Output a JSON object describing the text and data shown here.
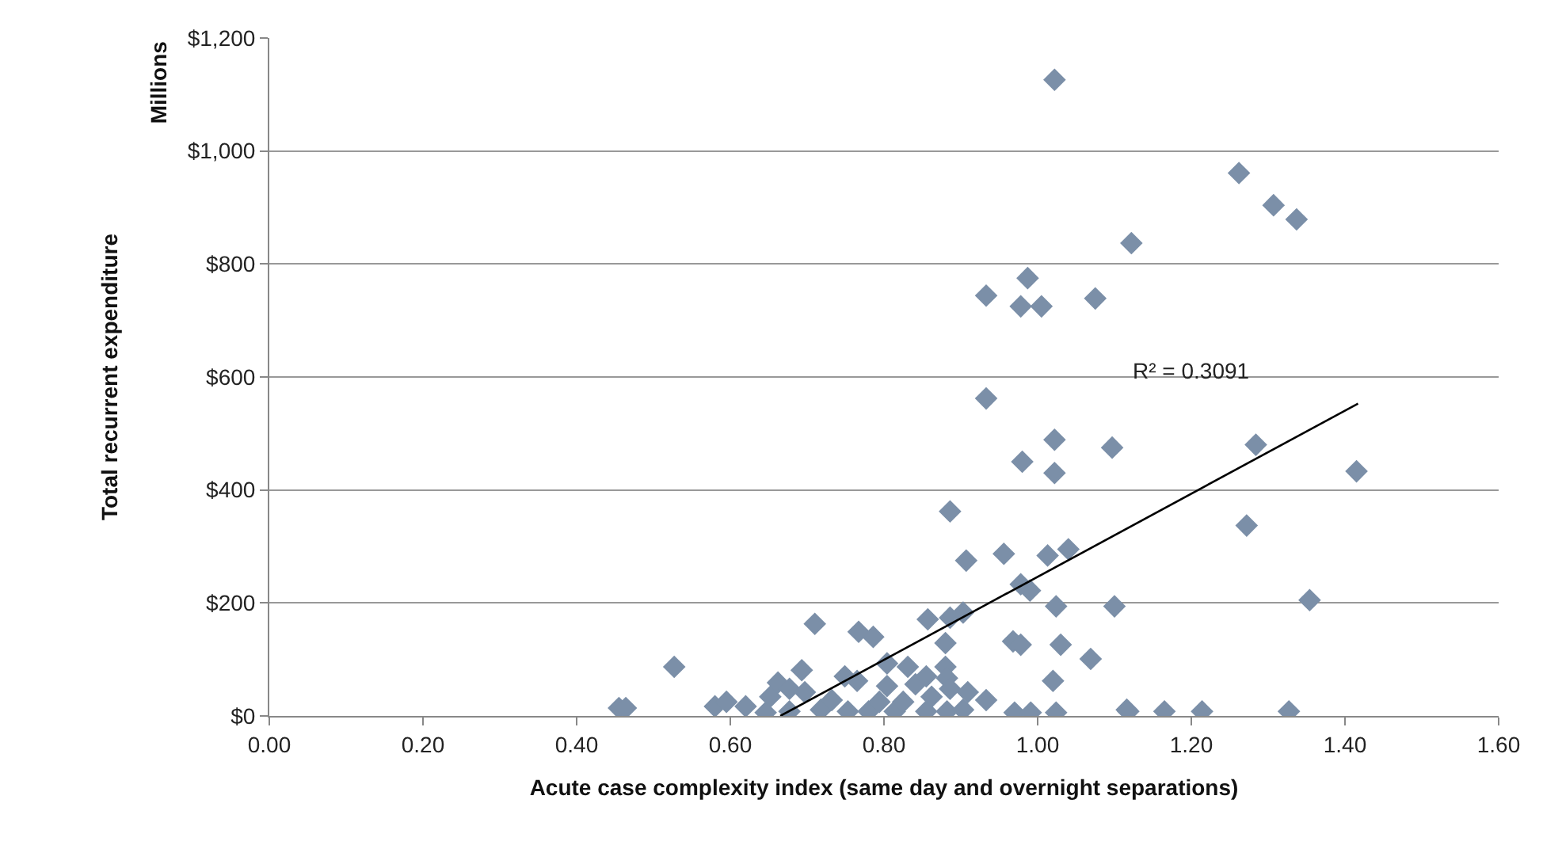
{
  "chart_data": {
    "type": "scatter",
    "xlabel": "Acute case complexity index (same day and overnight separations)",
    "ylabel": "Total recurrent expenditure",
    "annotations": [
      "Millions",
      "R² = 0.3091"
    ],
    "xlim": [
      0,
      1.6
    ],
    "ylim": [
      0,
      1200
    ],
    "xticks": [
      {
        "value": 0,
        "label": "0.00"
      },
      {
        "value": 0.2,
        "label": "0.20"
      },
      {
        "value": 0.4,
        "label": "0.40"
      },
      {
        "value": 0.6,
        "label": "0.60"
      },
      {
        "value": 0.8,
        "label": "0.80"
      },
      {
        "value": 1.0,
        "label": "1.00"
      },
      {
        "value": 1.2,
        "label": "1.20"
      },
      {
        "value": 1.4,
        "label": "1.40"
      },
      {
        "value": 1.6,
        "label": "1.60"
      }
    ],
    "yticks": [
      {
        "value": 0,
        "label": "$0"
      },
      {
        "value": 200,
        "label": "$200"
      },
      {
        "value": 400,
        "label": "$400"
      },
      {
        "value": 600,
        "label": "$600"
      },
      {
        "value": 800,
        "label": "$800"
      },
      {
        "value": 1000,
        "label": "$1,000"
      },
      {
        "value": 1200,
        "label": "$1,200"
      }
    ],
    "grid": "y",
    "marker": "diamond",
    "series": [
      {
        "color": "#7b8fa8",
        "x": [
          0.455,
          0.464,
          0.527,
          0.58,
          0.595,
          0.62,
          0.646,
          0.652,
          0.662,
          0.677,
          0.677,
          0.693,
          0.697,
          0.71,
          0.718,
          0.732,
          0.749,
          0.753,
          0.765,
          0.767,
          0.78,
          0.786,
          0.794,
          0.804,
          0.804,
          0.814,
          0.825,
          0.831,
          0.841,
          0.855,
          0.855,
          0.857,
          0.862,
          0.88,
          0.88,
          0.882,
          0.882,
          0.886,
          0.886,
          0.886,
          0.903,
          0.903,
          0.907,
          0.909,
          0.933,
          0.933,
          0.933,
          0.956,
          0.968,
          0.97,
          0.978,
          0.978,
          0.978,
          0.987,
          0.99,
          0.991,
          0.98,
          1.005,
          1.013,
          1.02,
          1.022,
          1.022,
          1.022,
          1.024,
          1.024,
          1.03,
          1.04,
          1.069,
          1.075,
          1.097,
          1.1,
          1.116,
          1.118,
          1.122,
          1.165,
          1.214,
          1.262,
          1.272,
          1.284,
          1.307,
          1.327,
          1.337,
          1.354,
          1.415
        ],
        "values": [
          14,
          14,
          87,
          17,
          25,
          17,
          6,
          34,
          59,
          48,
          8,
          81,
          42,
          163,
          11,
          28,
          70,
          8,
          62,
          149,
          8,
          140,
          25,
          53,
          93,
          8,
          25,
          87,
          56,
          70,
          8,
          171,
          34,
          129,
          87,
          67,
          8,
          174,
          48,
          362,
          183,
          11,
          275,
          42,
          28,
          744,
          562,
          287,
          132,
          6,
          233,
          126,
          725,
          775,
          222,
          6,
          450,
          725,
          284,
          62,
          1126,
          489,
          430,
          194,
          6,
          126,
          295,
          101,
          739,
          475,
          194,
          11,
          8,
          837,
          8,
          8,
          961,
          337,
          480,
          904,
          8,
          879,
          205,
          433
        ]
      },
      {
        "type": "line",
        "color": "#000000",
        "marker": "none",
        "x": [
          0.665,
          1.417
        ],
        "values": [
          0,
          553
        ]
      }
    ]
  }
}
